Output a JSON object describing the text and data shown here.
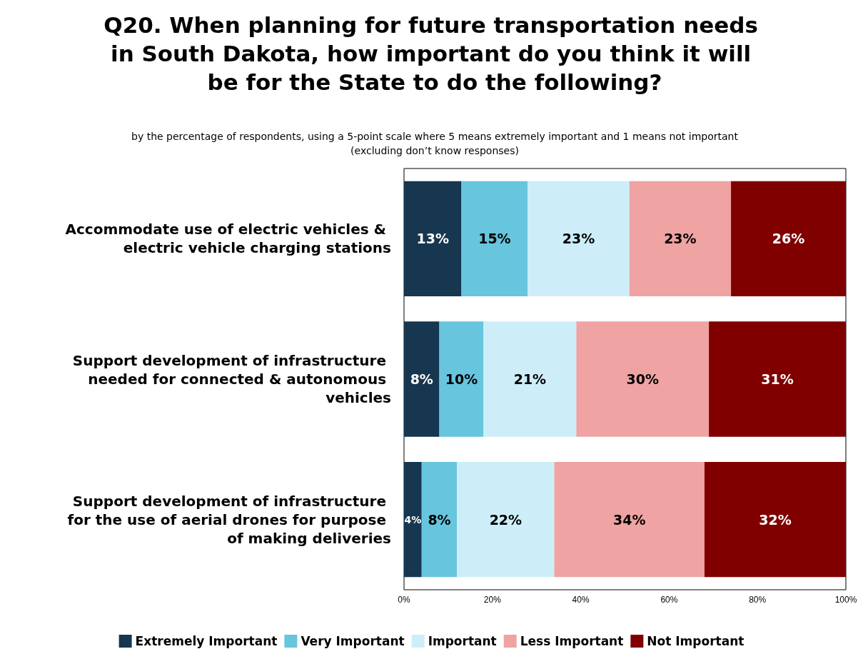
{
  "chart_data": {
    "type": "bar",
    "orientation": "horizontal",
    "stacked": true,
    "title": "Q20. When planning for future transportation needs in South Dakota, how important do you think it will be for the State to do the following?",
    "subtitle": "by the percentage of respondents, using a 5-point scale where 5 means extremely important and 1 means not important\n(excluding don’t know responses)",
    "categories": [
      "Accommodate use of electric vehicles & electric vehicle charging stations",
      "Support development of infrastructure needed for connected & autonomous vehicles",
      "Support development of infrastructure for the use of aerial drones for purpose of making deliveries"
    ],
    "series": [
      {
        "name": "Extremely Important",
        "color": "#17364f",
        "values": [
          13,
          8,
          4
        ],
        "value_labels": [
          "13%",
          "8%",
          "4%"
        ]
      },
      {
        "name": "Very Important",
        "color": "#67c5de",
        "values": [
          15,
          10,
          8
        ],
        "value_labels": [
          "15%",
          "10%",
          "8%"
        ]
      },
      {
        "name": "Important",
        "color": "#cdeef8",
        "values": [
          23,
          21,
          22
        ],
        "value_labels": [
          "23%",
          "21%",
          "22%"
        ]
      },
      {
        "name": "Less Important",
        "color": "#efa3a3",
        "values": [
          23,
          30,
          34
        ],
        "value_labels": [
          "23%",
          "30%",
          "34%"
        ]
      },
      {
        "name": "Not Important",
        "color": "#800000",
        "values": [
          26,
          31,
          32
        ],
        "value_labels": [
          "26%",
          "31%",
          "32%"
        ]
      }
    ],
    "xlim": [
      0,
      100
    ],
    "xticks": [
      {
        "value": 0,
        "label": "0%"
      },
      {
        "value": 20,
        "label": "20%"
      },
      {
        "value": 40,
        "label": "40%"
      },
      {
        "value": 60,
        "label": "60%"
      },
      {
        "value": 80,
        "label": "80%"
      },
      {
        "value": 100,
        "label": "100%"
      }
    ],
    "grid": false,
    "legend": "bottom"
  }
}
